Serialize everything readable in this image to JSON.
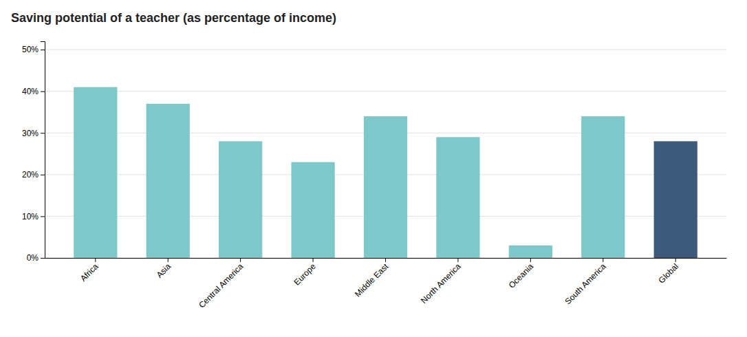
{
  "chart_data": {
    "type": "bar",
    "title": "Saving potential of a teacher (as percentage of income)",
    "categories": [
      "Africa",
      "Asia",
      "Central America",
      "Europe",
      "Middle East",
      "North America",
      "Oceania",
      "South America",
      "Global"
    ],
    "values": [
      41,
      37,
      28,
      23,
      34,
      29,
      3,
      34,
      28
    ],
    "colors": [
      "#7EC8CA",
      "#7EC8CA",
      "#7EC8CA",
      "#7EC8CA",
      "#7EC8CA",
      "#7EC8CA",
      "#7EC8CA",
      "#7EC8CA",
      "#3D5A7A"
    ],
    "ylim": [
      0,
      52
    ],
    "yticks": [
      {
        "value": 0,
        "label": "0%"
      },
      {
        "value": 10,
        "label": "10%"
      },
      {
        "value": 20,
        "label": "20%"
      },
      {
        "value": 30,
        "label": "30%"
      },
      {
        "value": 40,
        "label": "40%"
      },
      {
        "value": 50,
        "label": "50%"
      }
    ],
    "grid": true
  }
}
